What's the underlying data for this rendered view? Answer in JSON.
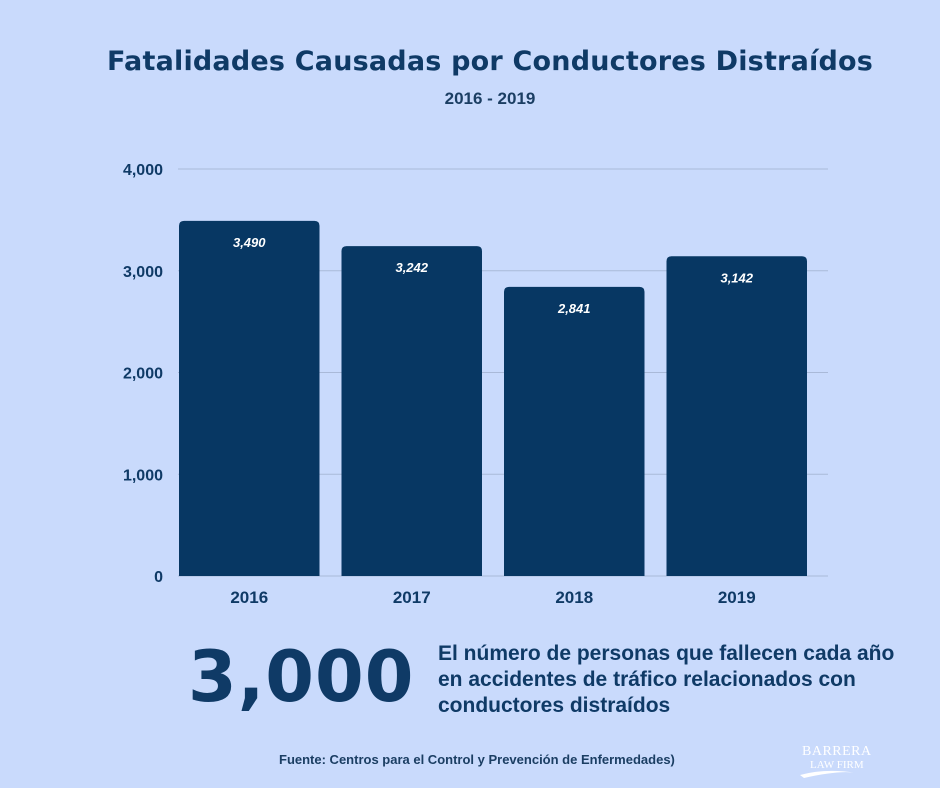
{
  "title": "Fatalidades Causadas por Conductores Distraídos",
  "subtitle": "2016 - 2019",
  "chart_data": {
    "type": "bar",
    "title": "Fatalidades Causadas por Conductores Distraídos",
    "subtitle": "2016 - 2019",
    "categories": [
      "2016",
      "2017",
      "2018",
      "2019"
    ],
    "values": [
      3490,
      3242,
      2841,
      3142
    ],
    "value_labels": [
      "3,490",
      "3,242",
      "2,841",
      "3,142"
    ],
    "yticks": [
      "0",
      "1,000",
      "2,000",
      "3,000",
      "4,000"
    ],
    "ylim": [
      0,
      4000
    ],
    "xlabel": "",
    "ylabel": "",
    "grid": true,
    "bar_color": "#073763"
  },
  "highlight": {
    "number": "3,000",
    "description": "El número de personas que fallecen cada año en accidentes de tráfico relacionados con conductores distraídos"
  },
  "source": "Fuente: Centros para el Control y Prevención de Enfermedades)",
  "logo": {
    "name": "BARRERA LAW FIRM",
    "text_top": "BARRERA",
    "text_bottom": "LAW FIRM"
  },
  "colors": {
    "background": "#c9dafc",
    "bar": "#073763",
    "text": "#0f3a66"
  }
}
